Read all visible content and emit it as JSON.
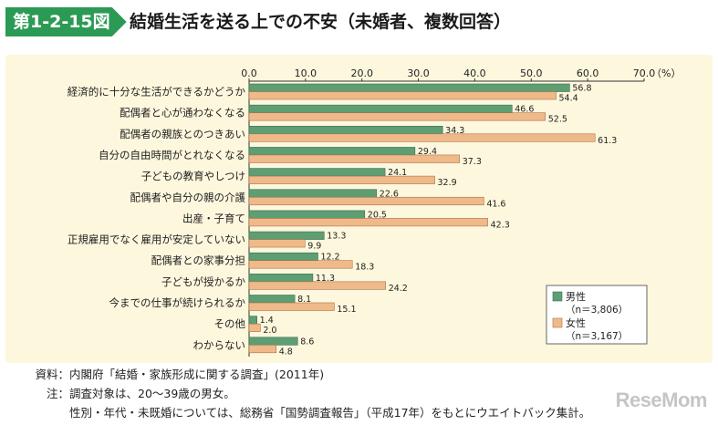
{
  "header": {
    "figure_number": "第1-2-15図",
    "title": "結婚生活を送る上での不安（未婚者、複数回答）"
  },
  "chart_data": {
    "type": "bar",
    "orientation": "horizontal",
    "xlim": [
      0,
      70
    ],
    "xticks": [
      "0.0",
      "10.0",
      "20.0",
      "30.0",
      "40.0",
      "50.0",
      "60.0",
      "70.0"
    ],
    "xunit": "（%）",
    "categories": [
      "経済的に十分な生活ができるかどうか",
      "配偶者と心が通わなくなる",
      "配偶者の親族とのつきあい",
      "自分の自由時間がとれなくなる",
      "子どもの教育やしつけ",
      "配偶者や自分の親の介護",
      "出産・子育て",
      "正規雇用でなく雇用が安定していない",
      "配偶者との家事分担",
      "子どもが授かるか",
      "今までの仕事が続けられるか",
      "その他",
      "わからない"
    ],
    "series": [
      {
        "name": "男性",
        "n": "（n＝3,806）",
        "color": "#5d9e73",
        "values": [
          56.8,
          46.6,
          34.3,
          29.4,
          24.1,
          22.6,
          20.5,
          13.3,
          12.2,
          11.3,
          8.1,
          1.4,
          8.6
        ],
        "labels": [
          "56.8",
          "46.6",
          "34.3",
          "29.4",
          "24.1",
          "22.6",
          "20.5",
          "13.3",
          "12.2",
          "11.3",
          "8.1",
          "1.4",
          "8.6"
        ]
      },
      {
        "name": "女性",
        "n": "（n＝3,167）",
        "color": "#f0b98a",
        "values": [
          54.4,
          52.5,
          61.3,
          37.3,
          32.9,
          41.6,
          42.3,
          9.9,
          18.3,
          24.2,
          15.1,
          2.0,
          4.8
        ],
        "labels": [
          "54.4",
          "52.5",
          "61.3",
          "37.3",
          "32.9",
          "41.6",
          "42.3",
          "9.9",
          "18.3",
          "24.2",
          "15.1",
          "2.0",
          "4.8"
        ]
      }
    ],
    "legend_position": "bottom-right"
  },
  "notes": {
    "source_label": "資料：",
    "source_text": "内閣府「結婚・家族形成に関する調査」(2011年)",
    "note_label": "注：",
    "note_line1": "調査対象は、20～39歳の男女。",
    "note_line2": "性別・年代・未既婚については、総務省「国勢調査報告」（平成17年）をもとにウエイトバック集計。"
  },
  "watermark": "ReseMom"
}
